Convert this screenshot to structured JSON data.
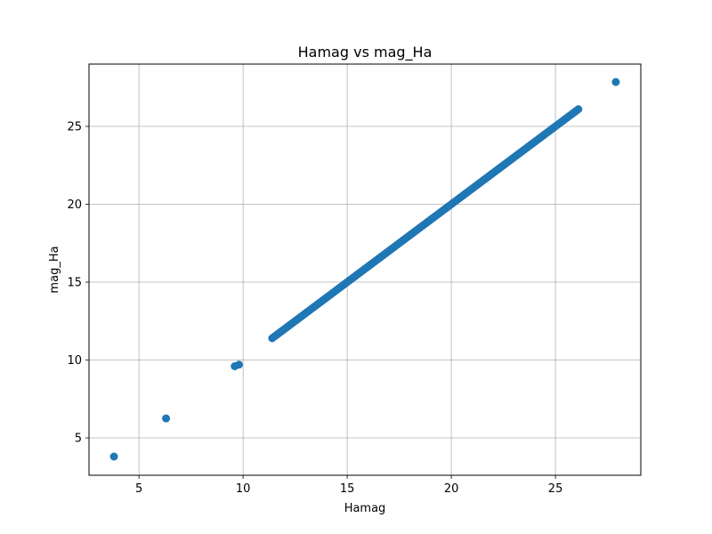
{
  "chart_data": {
    "type": "scatter",
    "title": "Hamag vs mag_Ha",
    "xlabel": "Hamag",
    "ylabel": "mag_Ha",
    "xlim": [
      2.6,
      29.1
    ],
    "ylim": [
      2.6,
      29.0
    ],
    "xticks": [
      5,
      10,
      15,
      20,
      25
    ],
    "yticks": [
      5,
      10,
      15,
      20,
      25
    ],
    "grid": true,
    "marker_color": "#1f77b4",
    "outliers": [
      {
        "x": 3.8,
        "y": 3.8
      },
      {
        "x": 6.3,
        "y": 6.25
      },
      {
        "x": 9.6,
        "y": 9.6
      },
      {
        "x": 9.8,
        "y": 9.7
      },
      {
        "x": 27.9,
        "y": 27.85
      }
    ],
    "dense_line": {
      "x_start": 11.4,
      "x_end": 26.1,
      "step": 0.1
    }
  }
}
